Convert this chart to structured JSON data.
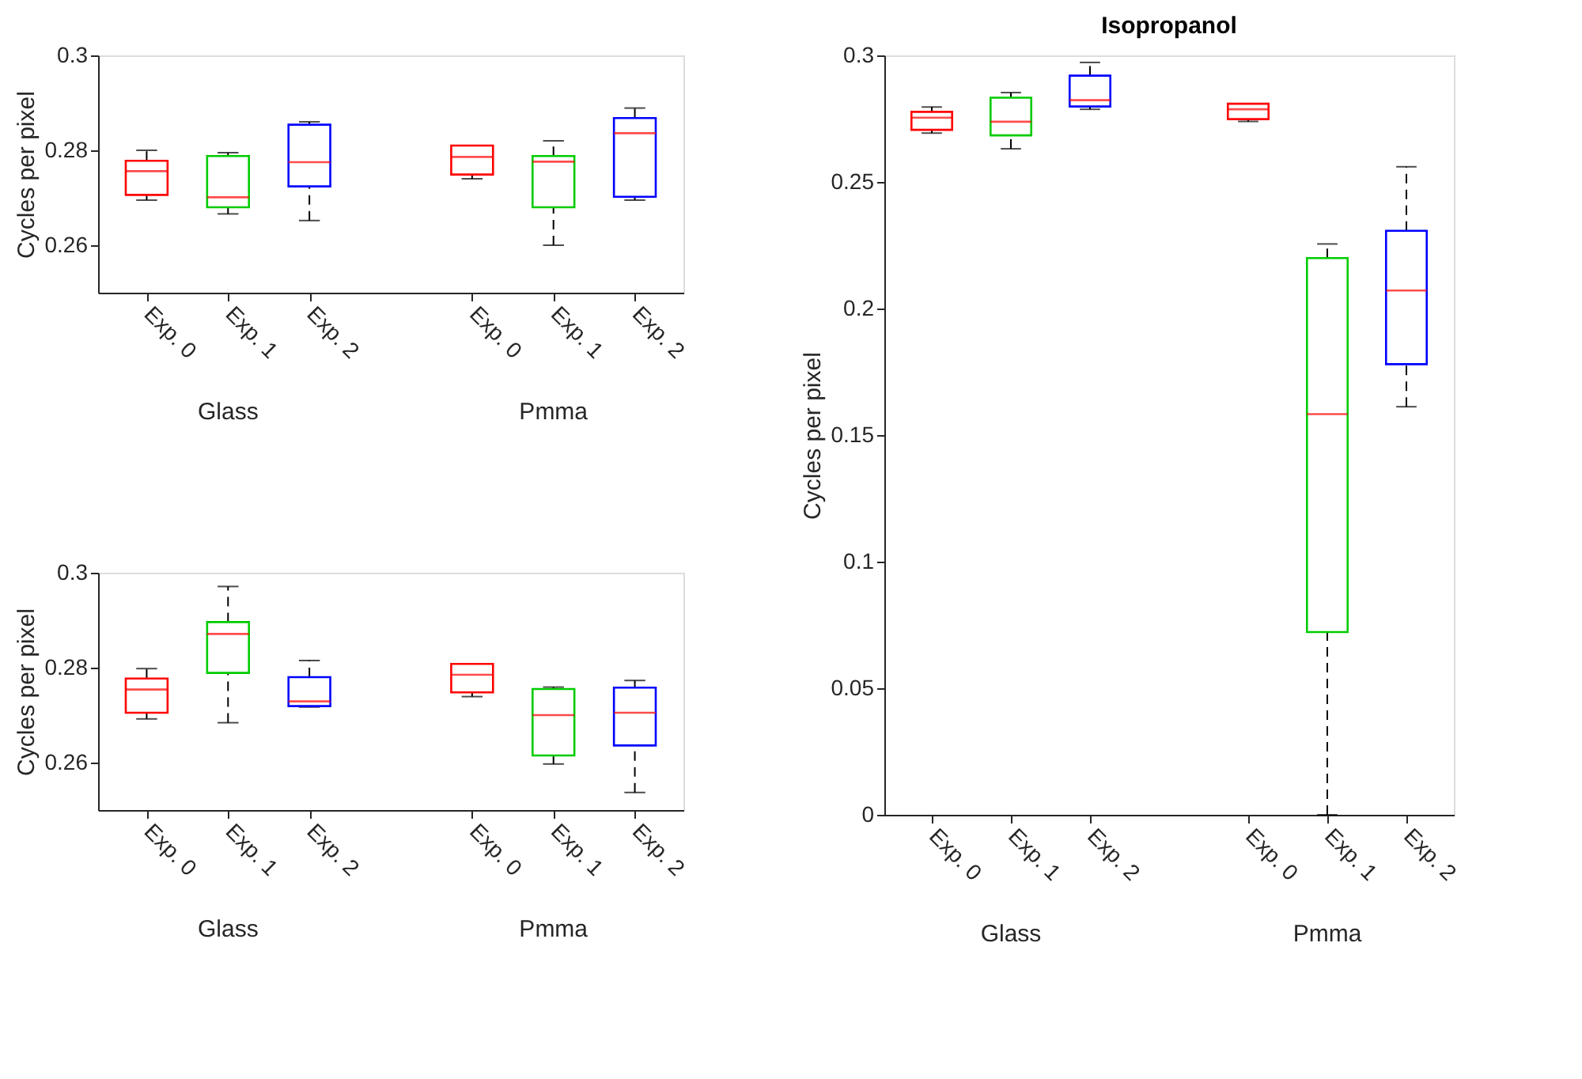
{
  "chart_data": [
    {
      "type": "box",
      "ylabel": "Cycles per pixel",
      "categories": [
        "Exp. 0",
        "Exp. 1",
        "Exp. 2",
        null,
        "Exp. 0",
        "Exp. 1",
        "Exp. 2"
      ],
      "colors": [
        "#ff0000",
        "#00cc00",
        "#0000ff",
        null,
        "#ff0000",
        "#00cc00",
        "#0000ff"
      ],
      "ylim": [
        0.25,
        0.3
      ],
      "yticks": [
        0.26,
        0.28,
        0.3
      ],
      "grid": false,
      "line_style": "dashed",
      "annotations": [
        "Glass",
        "Pmma"
      ],
      "boxes": [
        {
          "low": 0.2695,
          "q1": 0.2706,
          "median": 0.2756,
          "q3": 0.2778,
          "high": 0.28
        },
        {
          "low": 0.2666,
          "q1": 0.268,
          "median": 0.2701,
          "q3": 0.2788,
          "high": 0.2795
        },
        {
          "low": 0.2652,
          "q1": 0.2724,
          "median": 0.2775,
          "q3": 0.2854,
          "high": 0.286
        },
        null,
        {
          "low": 0.274,
          "q1": 0.2749,
          "median": 0.2786,
          "q3": 0.281,
          "high": 0.281
        },
        {
          "low": 0.26,
          "q1": 0.268,
          "median": 0.2776,
          "q3": 0.2788,
          "high": 0.282
        },
        {
          "low": 0.2695,
          "q1": 0.2702,
          "median": 0.2836,
          "q3": 0.2868,
          "high": 0.2889
        }
      ]
    },
    {
      "type": "box",
      "ylabel": "Cycles per pixel",
      "categories": [
        "Exp. 0",
        "Exp. 1",
        "Exp. 2",
        null,
        "Exp. 0",
        "Exp. 1",
        "Exp. 2"
      ],
      "colors": [
        "#ff0000",
        "#00cc00",
        "#0000ff",
        null,
        "#ff0000",
        "#00cc00",
        "#0000ff"
      ],
      "ylim": [
        0.25,
        0.3
      ],
      "yticks": [
        0.26,
        0.28,
        0.3
      ],
      "grid": false,
      "line_style": "dashed",
      "annotations": [
        "Glass",
        "Pmma"
      ],
      "boxes": [
        {
          "low": 0.2692,
          "q1": 0.2705,
          "median": 0.2754,
          "q3": 0.2777,
          "high": 0.2798
        },
        {
          "low": 0.2684,
          "q1": 0.2789,
          "median": 0.2871,
          "q3": 0.2896,
          "high": 0.2971
        },
        {
          "low": 0.2717,
          "q1": 0.2719,
          "median": 0.2729,
          "q3": 0.278,
          "high": 0.2815
        },
        null,
        {
          "low": 0.2739,
          "q1": 0.2748,
          "median": 0.2785,
          "q3": 0.2808,
          "high": 0.2808
        },
        {
          "low": 0.2597,
          "q1": 0.2615,
          "median": 0.27,
          "q3": 0.2755,
          "high": 0.2759
        },
        {
          "low": 0.2537,
          "q1": 0.2636,
          "median": 0.2705,
          "q3": 0.2758,
          "high": 0.2773
        }
      ]
    },
    {
      "type": "box",
      "title": "Isopropanol",
      "ylabel": "Cycles per pixel",
      "categories": [
        "Exp. 0",
        "Exp. 1",
        "Exp. 2",
        null,
        "Exp. 0",
        "Exp. 1",
        "Exp. 2"
      ],
      "colors": [
        "#ff0000",
        "#00cc00",
        "#0000ff",
        null,
        "#ff0000",
        "#00cc00",
        "#0000ff"
      ],
      "ylim": [
        0,
        0.3
      ],
      "yticks": [
        0,
        0.05,
        0.1,
        0.15,
        0.2,
        0.25,
        0.3
      ],
      "grid": false,
      "line_style": "dashed",
      "annotations": [
        "Glass",
        "Pmma"
      ],
      "boxes": [
        {
          "low": 0.2693,
          "q1": 0.2706,
          "median": 0.2754,
          "q3": 0.2777,
          "high": 0.2796
        },
        {
          "low": 0.2631,
          "q1": 0.2684,
          "median": 0.2738,
          "q3": 0.2833,
          "high": 0.2853
        },
        {
          "low": 0.2787,
          "q1": 0.2798,
          "median": 0.2823,
          "q3": 0.292,
          "high": 0.2972
        },
        null,
        {
          "low": 0.2739,
          "q1": 0.2748,
          "median": 0.2787,
          "q3": 0.2809,
          "high": 0.2809
        },
        {
          "low": 0,
          "q1": 0.0722,
          "median": 0.1583,
          "q3": 0.2199,
          "high": 0.2255
        },
        {
          "low": 0.1612,
          "q1": 0.178,
          "median": 0.2071,
          "q3": 0.2307,
          "high": 0.256
        }
      ]
    }
  ]
}
